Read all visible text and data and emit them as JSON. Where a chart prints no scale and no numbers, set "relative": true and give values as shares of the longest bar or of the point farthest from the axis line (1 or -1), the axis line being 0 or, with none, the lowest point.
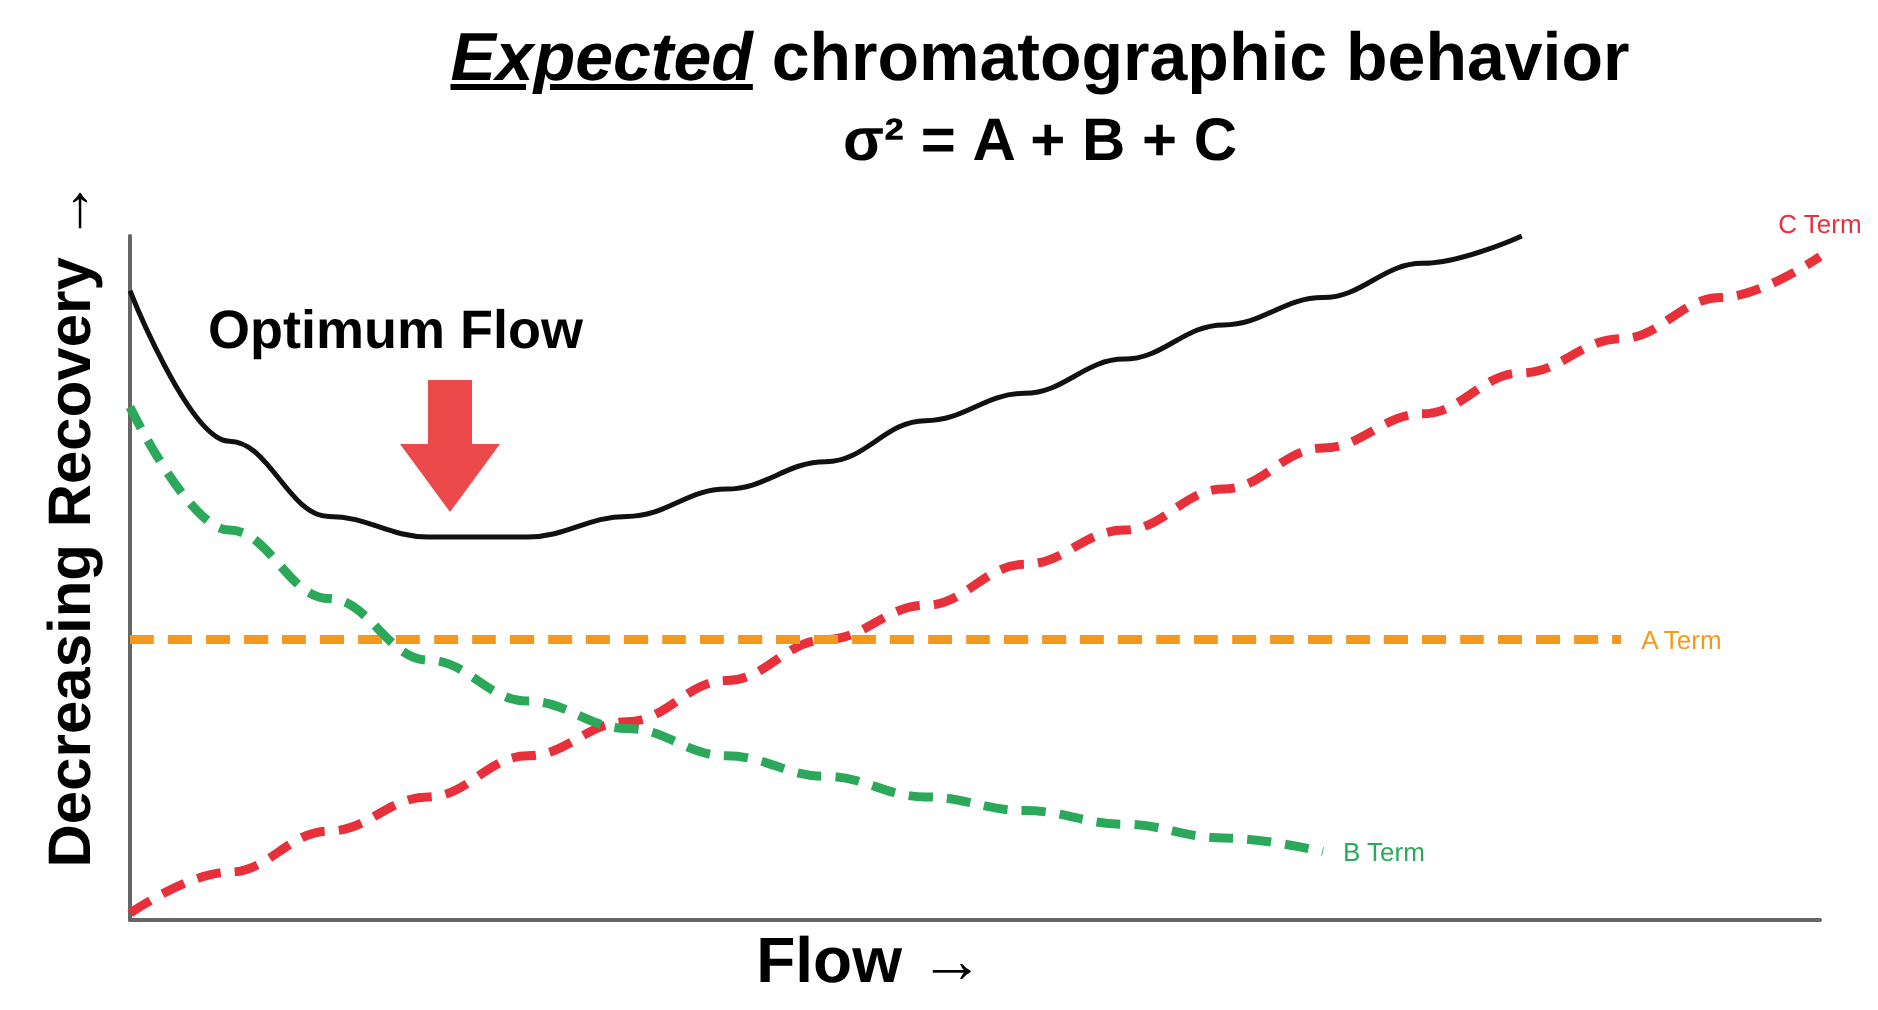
{
  "chart_data": {
    "type": "line",
    "title": "Expected chromatographic behavior",
    "subtitle": "σ² = A + B + C",
    "xlabel": "Flow →",
    "ylabel": "Decreasing Recovery →",
    "annotations": [
      "Optimum Flow"
    ],
    "relative": true,
    "legend": false,
    "grid": false,
    "marker": "none",
    "categories": [
      null,
      null,
      null,
      null,
      null,
      null,
      null,
      null,
      null,
      null,
      null,
      null,
      null,
      null,
      null,
      null,
      null,
      null
    ],
    "series": [
      {
        "name": "C Term",
        "color": "#e8303a",
        "line_style": "dashed",
        "values": [
          0.01,
          0.07,
          0.13,
          0.18,
          0.24,
          0.29,
          0.35,
          0.41,
          0.46,
          0.52,
          0.57,
          0.63,
          0.69,
          0.74,
          0.8,
          0.85,
          0.91,
          0.97
        ]
      },
      {
        "name": "A Term",
        "color": "#f39a1e",
        "line_style": "dashed",
        "values": [
          0.41,
          0.41,
          0.41,
          0.41,
          0.41,
          0.41,
          0.41,
          0.41,
          0.41,
          0.41,
          0.41,
          0.41,
          0.41,
          0.41,
          0.41,
          0.41,
          null,
          null
        ]
      },
      {
        "name": "B Term",
        "color": "#2ca85a",
        "line_style": "dashed",
        "values": [
          0.75,
          0.57,
          0.47,
          0.38,
          0.32,
          0.28,
          0.24,
          0.21,
          0.18,
          0.16,
          0.14,
          0.12,
          0.1,
          null,
          null,
          null,
          null,
          null
        ]
      },
      {
        "color": "#111111",
        "line_style": "solid",
        "values": [
          0.92,
          0.7,
          0.59,
          0.56,
          0.56,
          0.59,
          0.63,
          0.67,
          0.73,
          0.77,
          0.82,
          0.87,
          0.91,
          0.96,
          1,
          null,
          null,
          null
        ]
      }
    ]
  }
}
